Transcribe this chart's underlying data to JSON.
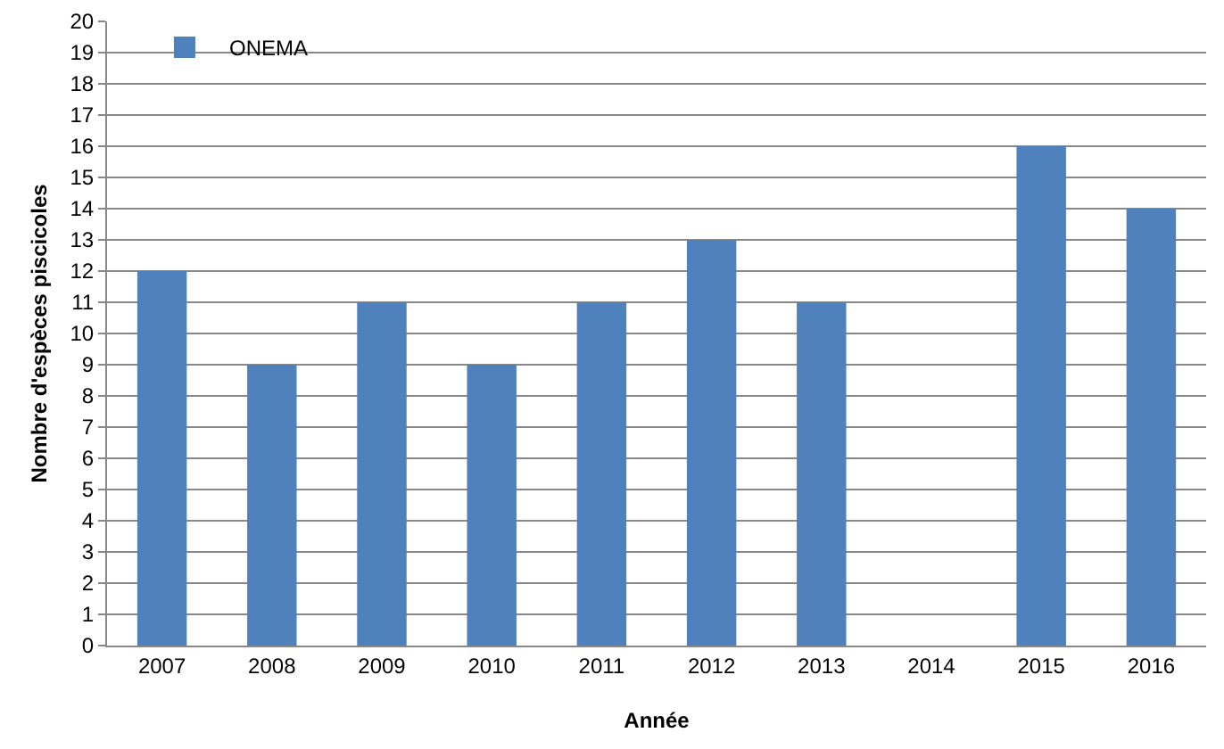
{
  "chart_data": {
    "type": "bar",
    "xlabel": "Année",
    "ylabel": "Nombre d'espèces piscicoles",
    "categories": [
      "2007",
      "2008",
      "2009",
      "2010",
      "2011",
      "2012",
      "2013",
      "2014",
      "2015",
      "2016"
    ],
    "series": [
      {
        "name": "ONEMA",
        "color": "#4f81bd",
        "values": [
          12,
          9,
          11,
          9,
          11,
          13,
          11,
          null,
          16,
          14
        ]
      }
    ],
    "ylim": [
      0,
      20
    ],
    "yticks": [
      0,
      1,
      2,
      3,
      4,
      5,
      6,
      7,
      8,
      9,
      10,
      11,
      12,
      13,
      14,
      15,
      16,
      17,
      18,
      19,
      20
    ],
    "grid": "y",
    "legend": "top left"
  }
}
